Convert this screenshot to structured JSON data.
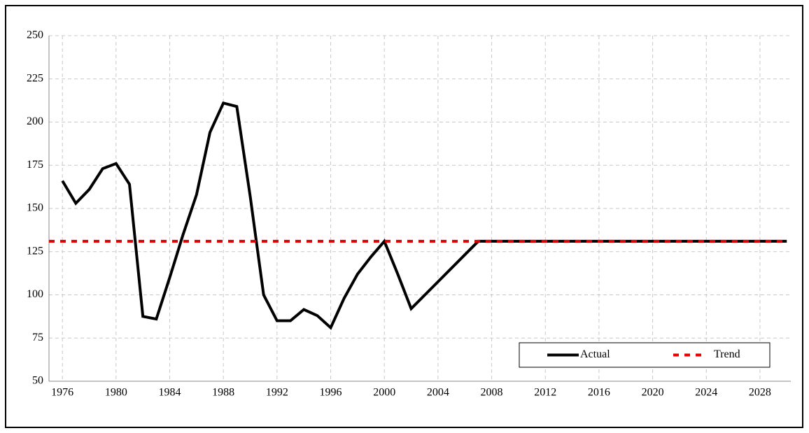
{
  "chart_data": {
    "type": "line",
    "series": [
      {
        "name": "Actual",
        "color": "#000000",
        "dash": false,
        "x": [
          1976,
          1977,
          1978,
          1979,
          1980,
          1981,
          1982,
          1983,
          1984,
          1985,
          1986,
          1987,
          1988,
          1989,
          1990,
          1991,
          1992,
          1993,
          1994,
          1995,
          1996,
          1997,
          1998,
          1999,
          2000,
          2001,
          2002,
          2003,
          2004,
          2005,
          2006,
          2007,
          2008,
          2009,
          2010,
          2011,
          2012,
          2013,
          2014,
          2015,
          2016,
          2017,
          2018,
          2019,
          2020,
          2021,
          2022,
          2023,
          2024,
          2025,
          2026,
          2027,
          2028,
          2029,
          2030
        ],
        "values": [
          166,
          153,
          161,
          173,
          176,
          164,
          87.5,
          86,
          110,
          135,
          158,
          194,
          211,
          209,
          157,
          100,
          85,
          85,
          91.5,
          88,
          81,
          98,
          112,
          122,
          131,
          112,
          92,
          99.8,
          107.6,
          115.4,
          123.2,
          131,
          131,
          131,
          131,
          131,
          131,
          131,
          131,
          131,
          131,
          131,
          131,
          131,
          131,
          131,
          131,
          131,
          131,
          131,
          131,
          131,
          131,
          131,
          131
        ]
      },
      {
        "name": "Trend",
        "color": "#e00000",
        "dash": true,
        "x": [
          1975,
          2030
        ],
        "values": [
          131,
          131
        ]
      }
    ],
    "xlim": [
      1975,
      2030.3
    ],
    "xticks": [
      1976,
      1980,
      1984,
      1988,
      1992,
      1996,
      2000,
      2004,
      2008,
      2012,
      2016,
      2020,
      2024,
      2028
    ],
    "ylim": [
      50,
      250
    ],
    "yticks": [
      50,
      75,
      100,
      125,
      150,
      175,
      200,
      225,
      250
    ],
    "grid": true,
    "legend": "bottom-right"
  }
}
